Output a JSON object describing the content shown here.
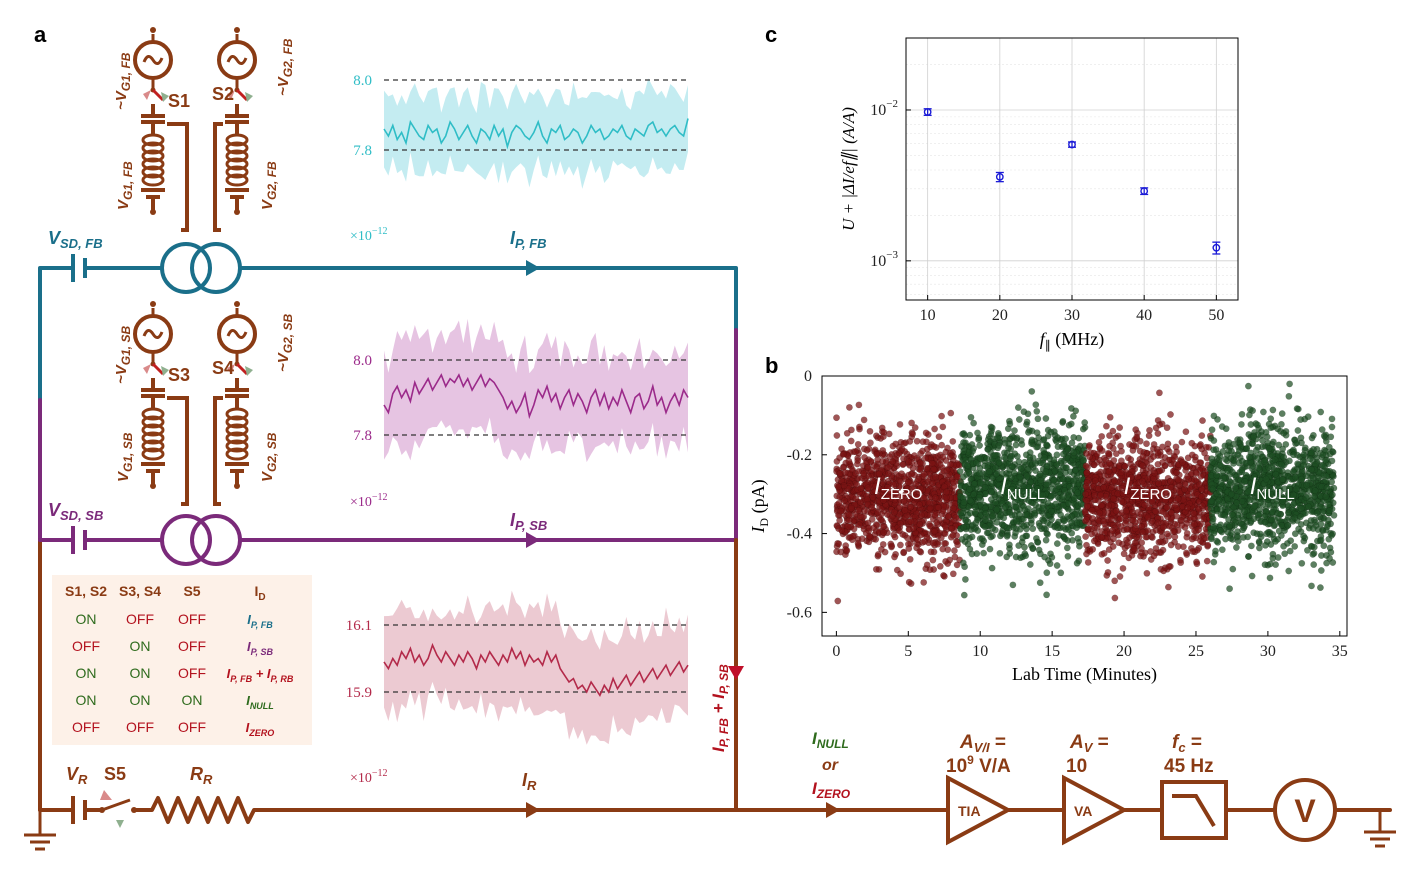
{
  "panel_labels": {
    "a": "a",
    "b": "b",
    "c": "c"
  },
  "colors": {
    "brown": "#8a3b14",
    "teal": "#1a6f8a",
    "purple": "#7b2a7a",
    "cyan": "#3ec5cc",
    "cyan_band": "#c4ecf1",
    "magenta": "#9b2a8a",
    "magenta_band": "#e6c4e2",
    "crimson": "#b32a4a",
    "crimson_band": "#eccad2",
    "zero_red": "#7a1414",
    "null_green": "#1d4d22",
    "blue": "#1a1ad6"
  },
  "circuit": {
    "fb_block": {
      "source1_name": "V",
      "source1_sub": "G1, FB",
      "source2_name": "V",
      "source2_sub": "G2, FB",
      "switch1": "S1",
      "switch2": "S2",
      "gate1": "V",
      "gate1_sub": "G1, FB",
      "gate2": "V",
      "gate2_sub": "G2, FB",
      "sd": "V",
      "sd_sub": "SD, FB",
      "current": "I",
      "current_sub": "P, FB"
    },
    "sb_block": {
      "source1_name": "V",
      "source1_sub": "G1, SB",
      "source2_name": "V",
      "source2_sub": "G2, SB",
      "switch1": "S3",
      "switch2": "S4",
      "gate1": "V",
      "gate1_sub": "G1, SB",
      "gate2": "V",
      "gate2_sub": "G2, SB",
      "sd": "V",
      "sd_sub": "SD, SB",
      "current": "I",
      "current_sub": "P, SB"
    },
    "ref": {
      "vr": "V",
      "vr_sub": "R",
      "switch": "S5",
      "rr": "R",
      "rr_sub": "R",
      "ir": "I",
      "ir_sub": "R"
    },
    "sum_current": {
      "a": "I",
      "a_sub": "P, FB",
      "plus": " + ",
      "b": "I",
      "b_sub": "P, SB"
    },
    "output_label": {
      "null": "I",
      "null_sub": "NULL",
      "or": "or",
      "zero": "I",
      "zero_sub": "ZERO"
    },
    "chain": {
      "tia_gain_sym": "A",
      "tia_gain_sub": "V/I",
      "tia_gain_eq": " =",
      "tia_gain_val_base": "10",
      "tia_gain_val_exp": "9",
      "tia_gain_val_unit": " V/A",
      "tia_box": "TIA",
      "va_gain_sym": "A",
      "va_gain_sub": "V",
      "va_gain_eq": " =",
      "va_gain_val": "10",
      "va_box": "VA",
      "fc_sym": "f",
      "fc_sub": "c",
      "fc_eq": " =",
      "fc_val": "45 Hz",
      "meter": "V"
    }
  },
  "switch_table": {
    "headers": [
      "S1, S2",
      "S3, S4",
      "S5",
      "I"
    ],
    "header_id_sub": "D",
    "rows": [
      {
        "s12": "ON",
        "s34": "OFF",
        "s5": "OFF",
        "id": "I",
        "id_sub": "P, FB",
        "id_color": "#1a6f8a"
      },
      {
        "s12": "OFF",
        "s34": "ON",
        "s5": "OFF",
        "id": "I",
        "id_sub": "P, SB",
        "id_color": "#7b2a7a"
      },
      {
        "s12": "ON",
        "s34": "ON",
        "s5": "OFF",
        "id": "I",
        "id_sub": "P, FB",
        "id_mid": " + I",
        "id_sub2": "P, RB",
        "id_color": "#b3121e"
      },
      {
        "s12": "ON",
        "s34": "ON",
        "s5": "ON",
        "id": "I",
        "id_sub": "NULL",
        "id_color": "#2e6b1d"
      },
      {
        "s12": "OFF",
        "s34": "OFF",
        "s5": "OFF",
        "id": "I",
        "id_sub": "ZERO",
        "id_color": "#b3121e"
      }
    ]
  },
  "insets": [
    {
      "name": "fb",
      "ticks": [
        "8.0",
        "7.8"
      ],
      "multiplier": "×10",
      "multiplier_exp": "−12",
      "color": "#2fbdc6",
      "band": "#c4ecf1",
      "line": [
        7.86,
        7.84,
        7.87,
        7.83,
        7.85,
        7.82,
        7.88,
        7.86,
        7.84,
        7.83,
        7.87,
        7.85,
        7.86,
        7.82,
        7.84,
        7.88,
        7.86,
        7.83,
        7.85,
        7.87,
        7.84,
        7.82,
        7.86,
        7.85,
        7.83,
        7.87,
        7.84,
        7.86,
        7.81,
        7.85,
        7.87,
        7.86,
        7.84,
        7.83,
        7.85,
        7.88,
        7.84,
        7.82,
        7.86,
        7.85,
        7.87,
        7.83,
        7.84,
        7.86,
        7.85,
        7.82,
        7.84,
        7.87,
        7.85,
        7.86,
        7.83,
        7.84,
        7.86,
        7.85,
        7.87,
        7.84,
        7.83,
        7.86,
        7.85,
        7.84,
        7.87,
        7.88,
        7.85,
        7.86,
        7.84,
        7.86,
        7.87,
        7.85,
        7.84,
        7.89
      ],
      "spread": 0.11
    },
    {
      "name": "sb",
      "ticks": [
        "8.0",
        "7.8"
      ],
      "multiplier": "×10",
      "multiplier_exp": "−12",
      "color": "#9b2a8a",
      "band": "#e6c4e2",
      "line": [
        7.88,
        7.86,
        7.91,
        7.93,
        7.9,
        7.92,
        7.89,
        7.94,
        7.91,
        7.93,
        7.95,
        7.92,
        7.94,
        7.96,
        7.93,
        7.95,
        7.94,
        7.96,
        7.93,
        7.95,
        7.92,
        7.94,
        7.96,
        7.93,
        7.95,
        7.94,
        7.92,
        7.9,
        7.87,
        7.89,
        7.86,
        7.88,
        7.91,
        7.85,
        7.88,
        7.92,
        7.9,
        7.93,
        7.89,
        7.91,
        7.87,
        7.9,
        7.92,
        7.88,
        7.91,
        7.89,
        7.86,
        7.9,
        7.92,
        7.88,
        7.91,
        7.87,
        7.9,
        7.88,
        7.92,
        7.89,
        7.86,
        7.9,
        7.91,
        7.87,
        7.89,
        7.93,
        7.88,
        7.9,
        7.86,
        7.89,
        7.91,
        7.88,
        7.92,
        7.9
      ],
      "spread": 0.13
    },
    {
      "name": "sum",
      "ticks": [
        "16.1",
        "15.9"
      ],
      "multiplier": "×10",
      "multiplier_exp": "−12",
      "color": "#b32a4a",
      "band": "#eccad2",
      "line": [
        15.99,
        15.97,
        16.0,
        15.98,
        16.02,
        16.0,
        16.03,
        15.99,
        16.01,
        15.98,
        16.0,
        16.04,
        16.01,
        15.99,
        16.02,
        16.0,
        15.98,
        16.01,
        15.99,
        16.02,
        16.0,
        15.97,
        16.01,
        15.99,
        16.02,
        16.0,
        15.98,
        16.01,
        15.99,
        16.03,
        16.0,
        16.02,
        15.98,
        16.01,
        15.99,
        16.0,
        15.98,
        16.02,
        15.99,
        16.01,
        15.97,
        15.95,
        15.93,
        15.94,
        15.91,
        15.92,
        15.9,
        15.93,
        15.91,
        15.89,
        15.92,
        15.9,
        15.94,
        15.91,
        15.93,
        15.95,
        15.92,
        15.94,
        15.96,
        15.93,
        15.95,
        15.97,
        15.94,
        15.96,
        15.98,
        15.95,
        15.97,
        15.99,
        15.96,
        15.98
      ],
      "spread": 0.14
    }
  ],
  "chart_data": [
    {
      "type": "scatter",
      "panel": "c",
      "title": "",
      "xlabel": "f",
      "xlabel_sub": "∥",
      "xlabel_unit": " (MHz)",
      "ylabel": "U + |ΔI/ef∥| (A/A)",
      "yscale": "log",
      "x": [
        10,
        20,
        30,
        40,
        50
      ],
      "y": [
        0.0097,
        0.0036,
        0.0059,
        0.0029,
        0.00122
      ],
      "yerr_frac": [
        0.05,
        0.07,
        0.04,
        0.05,
        0.09
      ],
      "xlim": [
        7,
        53
      ],
      "ylim": [
        0.00055,
        0.03
      ],
      "xticks": [
        "10",
        "20",
        "30",
        "40",
        "50"
      ],
      "ytick_base": "10",
      "ytick_exps": [
        "−2",
        "−3"
      ],
      "ytick_values": [
        0.01,
        0.001
      ],
      "color": "#1a1ad6"
    },
    {
      "type": "scatter",
      "panel": "b",
      "title": "",
      "xlabel": "Lab Time (Minutes)",
      "ylabel": "I",
      "ylabel_sub": "D",
      "ylabel_unit": " (pA)",
      "xlim": [
        -1,
        35.5
      ],
      "ylim": [
        -0.66,
        0.0
      ],
      "xticks": [
        "0",
        "5",
        "10",
        "15",
        "20",
        "25",
        "30",
        "35"
      ],
      "xtick_values": [
        0,
        5,
        10,
        15,
        20,
        25,
        30,
        35
      ],
      "yticks": [
        "0",
        "-0.2",
        "-0.4",
        "-0.6"
      ],
      "ytick_values": [
        0,
        -0.2,
        -0.4,
        -0.6
      ],
      "series": [
        {
          "name": "I_ZERO",
          "label": "I",
          "label_sub": "ZERO",
          "color": "#7a1414",
          "x_range": [
            0,
            8.6
          ],
          "mean": -0.31,
          "sd": 0.075
        },
        {
          "name": "I_NULL",
          "label": "I",
          "label_sub": "NULL",
          "color": "#1d4d22",
          "x_range": [
            8.6,
            17.3
          ],
          "mean": -0.29,
          "sd": 0.08
        },
        {
          "name": "I_ZERO",
          "label": "I",
          "label_sub": "ZERO",
          "color": "#7a1414",
          "x_range": [
            17.3,
            26.0
          ],
          "mean": -0.31,
          "sd": 0.075
        },
        {
          "name": "I_NULL",
          "label": "I",
          "label_sub": "NULL",
          "color": "#1d4d22",
          "x_range": [
            26.0,
            34.6
          ],
          "mean": -0.29,
          "sd": 0.08
        }
      ]
    }
  ]
}
